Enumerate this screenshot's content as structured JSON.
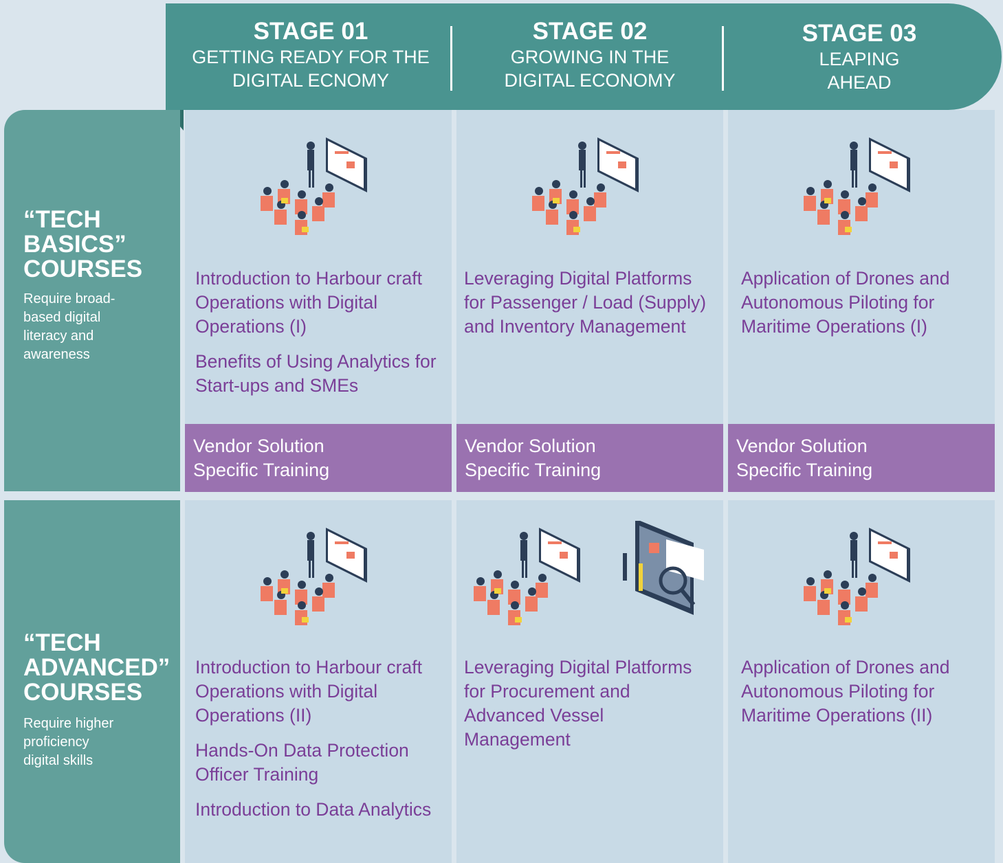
{
  "header": {
    "stages": [
      {
        "label": "STAGE 01",
        "subtitle_lines": [
          "GETTING READY FOR THE",
          "DIGITAL ECNOMY"
        ]
      },
      {
        "label": "STAGE 02",
        "subtitle_lines": [
          "GROWING IN THE",
          "DIGITAL ECONOMY"
        ]
      },
      {
        "label": "STAGE 03",
        "subtitle_lines": [
          "LEAPING",
          "AHEAD"
        ]
      }
    ]
  },
  "rows": [
    {
      "title_lines": [
        "“TECH",
        "BASICS”",
        "COURSES"
      ],
      "description": "Require broad-based digital literacy and awareness",
      "cells": [
        {
          "courses": [
            "Introduction to Harbour craft Operations with Digital Operations (I)",
            "Benefits of Using Analytics for Start-ups and SMEs"
          ],
          "vendor": "Vendor Solution Specific Training"
        },
        {
          "courses": [
            "Leveraging Digital Platforms for Passenger / Load (Supply) and Inventory Management"
          ],
          "vendor": "Vendor Solution Specific Training"
        },
        {
          "courses": [
            "Application of Drones and Autonomous Piloting for Maritime Operations (I)"
          ],
          "vendor": "Vendor Solution Specific Training"
        }
      ]
    },
    {
      "title_lines": [
        "“TECH",
        "ADVANCED”",
        "COURSES"
      ],
      "description": "Require higher proficiency digital skills",
      "cells": [
        {
          "courses": [
            "Introduction to Harbour craft Operations with Digital Operations (II)",
            "Hands-On Data Protection Officer Training",
            "Introduction to Data Analytics"
          ]
        },
        {
          "courses": [
            "Leveraging Digital Platforms for Procurement and Advanced Vessel Management"
          ]
        },
        {
          "courses": [
            "Application of Drones and Autonomous Piloting for Maritime Operations (II)"
          ]
        }
      ]
    }
  ]
}
